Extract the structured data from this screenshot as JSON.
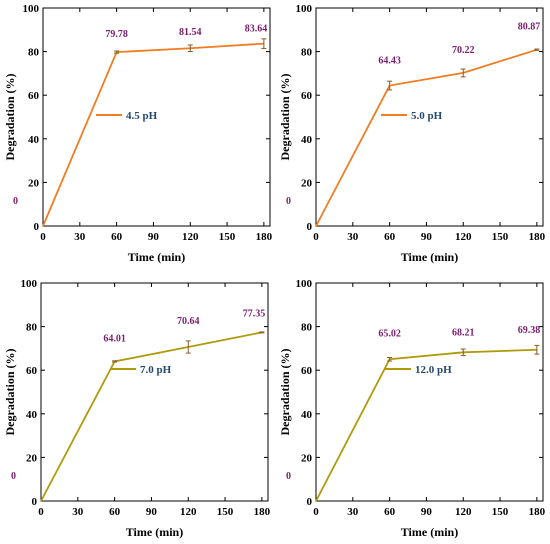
{
  "colors": {
    "axis": "#000000",
    "data_label": "#7b1e6b",
    "legend_text": "#24486e"
  },
  "chart_data": [
    {
      "type": "line",
      "x": [
        0,
        60,
        120,
        180
      ],
      "series": [
        {
          "name": "4.5 pH",
          "values": [
            0,
            79.78,
            81.54,
            83.64
          ],
          "errors": [
            0,
            0.5,
            1.5,
            2.2
          ],
          "color": "#f07d22"
        }
      ],
      "data_labels": [
        "0",
        "79.78",
        "81.54",
        "83.64"
      ],
      "xlabel": "Time (min)",
      "ylabel": "Degradation (%)",
      "xlim": [
        0,
        185
      ],
      "ylim": [
        0,
        100
      ],
      "xticks": [
        0,
        30,
        60,
        90,
        120,
        150,
        180
      ],
      "yticks": [
        0,
        20,
        40,
        60,
        80,
        100
      ],
      "grid": false,
      "legend": "center"
    },
    {
      "type": "line",
      "x": [
        0,
        60,
        120,
        180
      ],
      "series": [
        {
          "name": "5.0 pH",
          "values": [
            0,
            64.43,
            70.22,
            80.87
          ],
          "errors": [
            0,
            2.0,
            1.8,
            0.3
          ],
          "color": "#f07d22"
        }
      ],
      "data_labels": [
        "0",
        "64.43",
        "70.22",
        "80.87"
      ],
      "xlabel": "Time (min)",
      "ylabel": "Degradation (%)",
      "xlim": [
        0,
        185
      ],
      "ylim": [
        0,
        100
      ],
      "xticks": [
        0,
        30,
        60,
        90,
        120,
        150,
        180
      ],
      "yticks": [
        0,
        20,
        40,
        60,
        80,
        100
      ],
      "grid": false,
      "legend": "center"
    },
    {
      "type": "line",
      "x": [
        0,
        60,
        120,
        180
      ],
      "series": [
        {
          "name": "7.0 pH",
          "values": [
            0,
            64.01,
            70.64,
            77.35
          ],
          "errors": [
            0,
            0.3,
            2.8,
            0.2
          ],
          "color": "#b09a0a"
        }
      ],
      "data_labels": [
        "0",
        "64.01",
        "70.64",
        "77.35"
      ],
      "xlabel": "Time (min)",
      "ylabel": "Degradation (%)",
      "xlim": [
        0,
        185
      ],
      "ylim": [
        0,
        100
      ],
      "xticks": [
        0,
        30,
        60,
        90,
        120,
        150,
        180
      ],
      "yticks": [
        0,
        20,
        40,
        60,
        80,
        100
      ],
      "grid": false,
      "legend": "center"
    },
    {
      "type": "line",
      "x": [
        0,
        60,
        120,
        180
      ],
      "series": [
        {
          "name": "12.0 pH",
          "values": [
            0,
            65.02,
            68.21,
            69.38
          ],
          "errors": [
            0,
            0.8,
            1.5,
            2.0
          ],
          "color": "#b09a0a"
        }
      ],
      "data_labels": [
        "0",
        "65.02",
        "68.21",
        "69.38"
      ],
      "xlabel": "Time (min)",
      "ylabel": "Degradation (%)",
      "xlim": [
        0,
        185
      ],
      "ylim": [
        0,
        100
      ],
      "xticks": [
        0,
        30,
        60,
        90,
        120,
        150,
        180
      ],
      "yticks": [
        0,
        20,
        40,
        60,
        80,
        100
      ],
      "grid": false,
      "legend": "center"
    }
  ]
}
